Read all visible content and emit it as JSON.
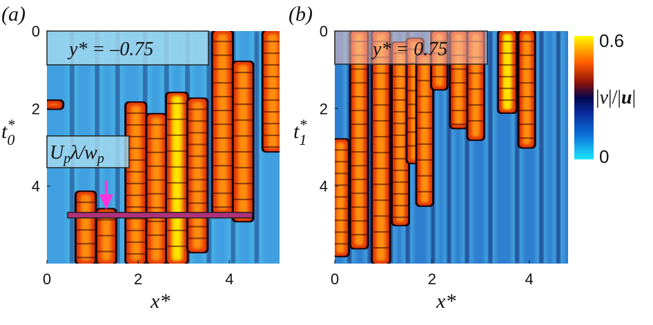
{
  "chart_data": [
    {
      "type": "heatmap",
      "panel_label": "(a)",
      "xlabel": "x*",
      "ylabel_main": "t",
      "ylabel_sup": "*",
      "ylabel_sub": "0",
      "xlim": [
        0,
        5.1
      ],
      "ylim": [
        0,
        6.0
      ],
      "y_inverted": true,
      "xticks": [
        "0",
        "2",
        "4"
      ],
      "yticks": [
        "0",
        "2",
        "4"
      ],
      "annotation": "y* = –0.75",
      "second_annotation": "U_pλ/w_p",
      "marker": {
        "type": "horizontal band with arrow",
        "t": 4.75,
        "x_range": [
          0.45,
          4.5
        ],
        "arrow_x": 1.3,
        "arrow_color": "#ff33dd",
        "band_color": "#b0307a"
      },
      "streaks": [
        {
          "x": 0.15,
          "t_start": 1.8,
          "t_end": 2.0,
          "strength": 0.55
        },
        {
          "x": 0.85,
          "t_start": 4.15,
          "t_end": 6.0,
          "strength": 0.75
        },
        {
          "x": 1.3,
          "t_start": 4.6,
          "t_end": 6.0,
          "strength": 0.7
        },
        {
          "x": 1.95,
          "t_start": 1.85,
          "t_end": 6.0,
          "strength": 0.85
        },
        {
          "x": 2.4,
          "t_start": 2.15,
          "t_end": 6.0,
          "strength": 0.75
        },
        {
          "x": 2.85,
          "t_start": 1.6,
          "t_end": 6.0,
          "strength": 1.0
        },
        {
          "x": 3.3,
          "t_start": 1.75,
          "t_end": 5.7,
          "strength": 0.75
        },
        {
          "x": 3.85,
          "t_start": 0.0,
          "t_end": 4.7,
          "strength": 0.85
        },
        {
          "x": 4.3,
          "t_start": 0.8,
          "t_end": 4.9,
          "strength": 0.8
        },
        {
          "x": 4.95,
          "t_start": 0.0,
          "t_end": 3.1,
          "strength": 0.8
        }
      ],
      "dark_lines_x": [
        0.55,
        1.1,
        1.55,
        2.15,
        2.62,
        3.08,
        3.55,
        4.08,
        4.6
      ]
    },
    {
      "type": "heatmap",
      "panel_label": "(b)",
      "xlabel": "x*",
      "ylabel_main": "t",
      "ylabel_sup": "*",
      "ylabel_sub": "1",
      "xlim": [
        0,
        4.8
      ],
      "ylim": [
        0,
        6.0
      ],
      "y_inverted": true,
      "xticks": [
        "0",
        "2",
        "4"
      ],
      "yticks": [
        "0",
        "2",
        "4"
      ],
      "annotation": "y* = 0.75",
      "streaks": [
        {
          "x": 0.12,
          "t_start": 2.8,
          "t_end": 5.8,
          "strength": 0.6
        },
        {
          "x": 0.5,
          "t_start": 0.0,
          "t_end": 5.6,
          "strength": 0.8
        },
        {
          "x": 0.95,
          "t_start": 0.0,
          "t_end": 6.0,
          "strength": 0.9
        },
        {
          "x": 1.35,
          "t_start": 0.3,
          "t_end": 5.0,
          "strength": 0.7
        },
        {
          "x": 1.65,
          "t_start": 0.2,
          "t_end": 3.4,
          "strength": 0.65
        },
        {
          "x": 1.85,
          "t_start": 0.6,
          "t_end": 4.5,
          "strength": 0.65
        },
        {
          "x": 2.15,
          "t_start": 0.0,
          "t_end": 1.5,
          "strength": 0.55
        },
        {
          "x": 2.55,
          "t_start": 0.0,
          "t_end": 2.5,
          "strength": 0.75
        },
        {
          "x": 2.9,
          "t_start": 0.0,
          "t_end": 2.8,
          "strength": 0.65
        },
        {
          "x": 3.55,
          "t_start": 0.0,
          "t_end": 2.1,
          "strength": 1.0
        },
        {
          "x": 3.95,
          "t_start": 0.0,
          "t_end": 3.0,
          "strength": 0.6
        }
      ],
      "dark_lines_x": [
        0.3,
        0.72,
        1.15,
        1.5,
        2.02,
        2.35,
        2.72,
        3.2,
        3.75,
        4.25,
        4.6
      ]
    }
  ],
  "colorbar": {
    "label_parts": [
      "|",
      "v",
      "|/|",
      "u",
      "|"
    ],
    "min_label": "0",
    "max_label": "0.6",
    "range": [
      0,
      0.6
    ],
    "colors": [
      "#1ee6ff",
      "#0b5cc8",
      "#05084f",
      "#8c1008",
      "#ff5a00",
      "#ffb000",
      "#ffff00"
    ]
  }
}
